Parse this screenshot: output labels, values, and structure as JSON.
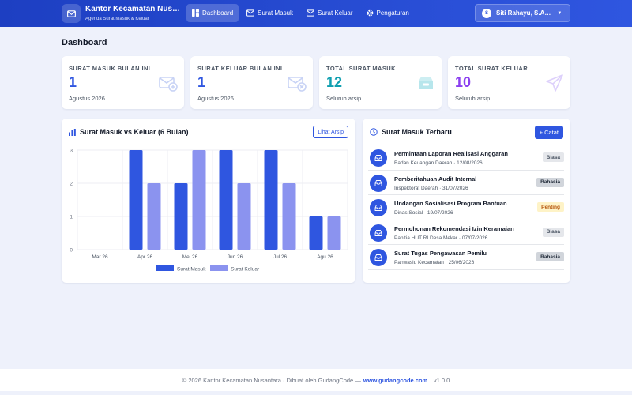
{
  "app": {
    "title": "Kantor Kecamatan Nusan…",
    "subtitle": "Agenda Surat Masuk & Keluar"
  },
  "nav": [
    {
      "label": "Dashboard",
      "icon": "dashboard-icon"
    },
    {
      "label": "Surat Masuk",
      "icon": "inbox-mail-icon"
    },
    {
      "label": "Surat Keluar",
      "icon": "outbox-mail-icon"
    },
    {
      "label": "Pengaturan",
      "icon": "gear-icon"
    }
  ],
  "user": {
    "initial": "S",
    "name": "Siti Rahayu, S.A…"
  },
  "page_title": "Dashboard",
  "stats": [
    {
      "label": "SURAT MASUK BULAN INI",
      "value": "1",
      "note": "Agustus 2026",
      "color": "#2f56e0",
      "icon": "mail-plus-icon"
    },
    {
      "label": "SURAT KELUAR BULAN INI",
      "value": "1",
      "note": "Agustus 2026",
      "color": "#2f56e0",
      "icon": "mail-out-icon"
    },
    {
      "label": "TOTAL SURAT MASUK",
      "value": "12",
      "note": "Seluruh arsip",
      "color": "#0f9fb0",
      "icon": "archive-icon"
    },
    {
      "label": "TOTAL SURAT KELUAR",
      "value": "10",
      "note": "Seluruh arsip",
      "color": "#8b3ff0",
      "icon": "send-icon"
    }
  ],
  "chart_card": {
    "title": "Surat Masuk vs Keluar (6 Bulan)",
    "button": "Lihat Arsip"
  },
  "chart_data": {
    "type": "bar",
    "categories": [
      "Mar 26",
      "Apr 26",
      "Mei 26",
      "Jun 26",
      "Jul 26",
      "Agu 26"
    ],
    "series": [
      {
        "name": "Surat Masuk",
        "values": [
          0,
          3,
          2,
          3,
          3,
          1
        ],
        "color": "#2f56e0"
      },
      {
        "name": "Surat Keluar",
        "values": [
          0,
          2,
          3,
          2,
          2,
          1
        ],
        "color": "#8b93ef"
      }
    ],
    "yticks": [
      "0",
      "1",
      "2",
      "3"
    ],
    "ylim": [
      0,
      3
    ],
    "grid": true,
    "legend": "bottom"
  },
  "recent": {
    "title": "Surat Masuk Terbaru",
    "button": "+ Catat",
    "items": [
      {
        "title": "Permintaan Laporan Realisasi Anggaran",
        "meta": "Badan Keuangan Daerah · 12/08/2026",
        "badge": "Biasa",
        "badge_type": "biasa"
      },
      {
        "title": "Pemberitahuan Audit Internal",
        "meta": "Inspektorat Daerah · 31/07/2026",
        "badge": "Rahasia",
        "badge_type": "rahasia"
      },
      {
        "title": "Undangan Sosialisasi Program Bantuan",
        "meta": "Dinas Sosial · 19/07/2026",
        "badge": "Penting",
        "badge_type": "penting"
      },
      {
        "title": "Permohonan Rekomendasi Izin Keramaian",
        "meta": "Panitia HUT RI Desa Mekar · 07/07/2026",
        "badge": "Biasa",
        "badge_type": "biasa"
      },
      {
        "title": "Surat Tugas Pengawasan Pemilu",
        "meta": "Panwaslu Kecamatan · 25/06/2026",
        "badge": "Rahasia",
        "badge_type": "rahasia"
      }
    ]
  },
  "footer": {
    "prefix": "© 2026 Kantor Kecamatan Nusantara · Dibuat oleh GudangCode —",
    "link": "www.gudangcode.com",
    "suffix": "· v1.0.0"
  }
}
